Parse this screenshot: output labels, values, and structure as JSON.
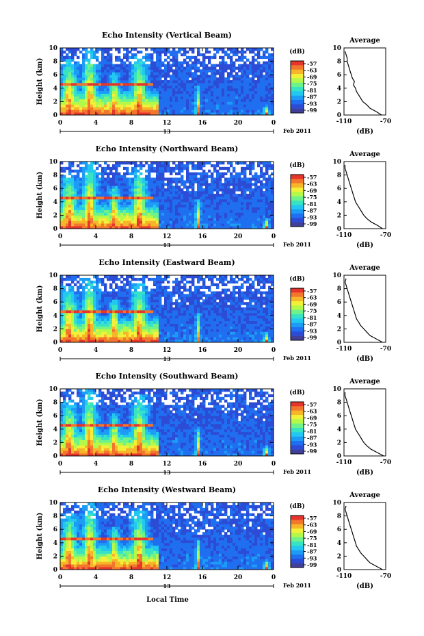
{
  "colors": {
    "scale": [
      "#40409a",
      "#2d4cd6",
      "#1f6ff0",
      "#1d9cf5",
      "#22c8f0",
      "#38e3c4",
      "#6ef38a",
      "#b4f84a",
      "#f3f03a",
      "#f7b52a",
      "#f2762b",
      "#e5352c"
    ],
    "background": "#ffffff",
    "average_line": "#000000"
  },
  "common": {
    "y_label": "Height (km)",
    "colorbar_label": "(dB)",
    "colorbar_ticks": [
      "-57",
      "-63",
      "-69",
      "-75",
      "-81",
      "-87",
      "-93",
      "-99"
    ],
    "x_ticks": [
      "0",
      "4",
      "8",
      "12",
      "16",
      "20",
      "0"
    ],
    "date_label": "Feb 2011",
    "date_day": "13",
    "y_ticks": [
      "0",
      "2",
      "4",
      "6",
      "8",
      "10"
    ],
    "avg_title": "Average",
    "avg_x_ticks": [
      "-110",
      "-70"
    ],
    "avg_x_label": "(dB)",
    "x_axis_label": "Local Time"
  },
  "panels": [
    {
      "title": "Echo Intensity (Vertical Beam)"
    },
    {
      "title": "Echo Intensity (Northward Beam)"
    },
    {
      "title": "Echo Intensity (Eastward Beam)"
    },
    {
      "title": "Echo Intensity (Southward Beam)"
    },
    {
      "title": "Echo Intensity (Westward Beam)"
    }
  ],
  "chart_data": [
    {
      "type": "heatmap",
      "title": "Echo Intensity (Vertical Beam)",
      "ylabel": "Height (km)",
      "xlabel": "Local Time",
      "x_range_hours": [
        0,
        24
      ],
      "ylim_km": [
        0,
        10
      ],
      "colorbar": {
        "label": "(dB)",
        "range": [
          -99,
          -57
        ]
      },
      "average_profile": {
        "xlim_db": [
          -110,
          -70
        ],
        "height_km": [
          0,
          0.5,
          1,
          1.5,
          2,
          2.5,
          3,
          3.5,
          4,
          4.5,
          5,
          5.5,
          6,
          6.5,
          7,
          7.5,
          8,
          8.5,
          9,
          9.5
        ],
        "db": [
          -74,
          -79,
          -85,
          -88,
          -92,
          -94,
          -96,
          -98,
          -99,
          -101,
          -100,
          -102,
          -103,
          -104,
          -105,
          -106,
          -107,
          -107,
          -108,
          -109
        ]
      }
    },
    {
      "type": "heatmap",
      "title": "Echo Intensity (Northward Beam)",
      "ylabel": "Height (km)",
      "xlabel": "Local Time",
      "x_range_hours": [
        0,
        24
      ],
      "ylim_km": [
        0,
        10
      ],
      "colorbar": {
        "label": "(dB)",
        "range": [
          -99,
          -57
        ]
      },
      "average_profile": {
        "xlim_db": [
          -110,
          -70
        ],
        "height_km": [
          0,
          0.5,
          1,
          1.5,
          2,
          2.5,
          3,
          3.5,
          4,
          4.5,
          5,
          5.5,
          6,
          6.5,
          7,
          7.5,
          8,
          8.5,
          9,
          9.5
        ],
        "db": [
          -73,
          -78,
          -84,
          -88,
          -91,
          -93,
          -95,
          -97,
          -99,
          -100,
          -101,
          -102,
          -103,
          -104,
          -105,
          -106,
          -107,
          -108,
          -109,
          -109
        ]
      }
    },
    {
      "type": "heatmap",
      "title": "Echo Intensity (Eastward Beam)",
      "ylabel": "Height (km)",
      "xlabel": "Local Time",
      "x_range_hours": [
        0,
        24
      ],
      "ylim_km": [
        0,
        10
      ],
      "colorbar": {
        "label": "(dB)",
        "range": [
          -99,
          -57
        ]
      },
      "average_profile": {
        "xlim_db": [
          -110,
          -70
        ],
        "height_km": [
          0,
          0.5,
          1,
          1.5,
          2,
          2.5,
          3,
          3.5,
          4,
          4.5,
          5,
          5.5,
          6,
          6.5,
          7,
          7.5,
          8,
          8.5,
          9,
          9.5
        ],
        "db": [
          -73,
          -79,
          -85,
          -88,
          -91,
          -94,
          -96,
          -98,
          -99,
          -100,
          -101,
          -102,
          -103,
          -104,
          -105,
          -106,
          -107,
          -108,
          -109,
          -108
        ]
      }
    },
    {
      "type": "heatmap",
      "title": "Echo Intensity (Southward Beam)",
      "ylabel": "Height (km)",
      "xlabel": "Local Time",
      "x_range_hours": [
        0,
        24
      ],
      "ylim_km": [
        0,
        10
      ],
      "colorbar": {
        "label": "(dB)",
        "range": [
          -99,
          -57
        ]
      },
      "average_profile": {
        "xlim_db": [
          -110,
          -70
        ],
        "height_km": [
          0,
          0.5,
          1,
          1.5,
          2,
          2.5,
          3,
          3.5,
          4,
          4.5,
          5,
          5.5,
          6,
          6.5,
          7,
          7.5,
          8,
          8.5,
          9,
          9.5
        ],
        "db": [
          -72,
          -78,
          -84,
          -88,
          -91,
          -93,
          -95,
          -97,
          -99,
          -100,
          -101,
          -102,
          -103,
          -104,
          -105,
          -106,
          -107,
          -108,
          -109,
          -109
        ]
      }
    },
    {
      "type": "heatmap",
      "title": "Echo Intensity (Westward Beam)",
      "ylabel": "Height (km)",
      "xlabel": "Local Time",
      "x_range_hours": [
        0,
        24
      ],
      "ylim_km": [
        0,
        10
      ],
      "colorbar": {
        "label": "(dB)",
        "range": [
          -99,
          -57
        ]
      },
      "average_profile": {
        "xlim_db": [
          -110,
          -70
        ],
        "height_km": [
          0,
          0.5,
          1,
          1.5,
          2,
          2.5,
          3,
          3.5,
          4,
          4.5,
          5,
          5.5,
          6,
          6.5,
          7,
          7.5,
          8,
          8.5,
          9,
          9.5
        ],
        "db": [
          -73,
          -79,
          -85,
          -88,
          -91,
          -94,
          -96,
          -98,
          -99,
          -100,
          -101,
          -102,
          -103,
          -104,
          -105,
          -106,
          -107,
          -108,
          -109,
          -108
        ]
      }
    }
  ]
}
